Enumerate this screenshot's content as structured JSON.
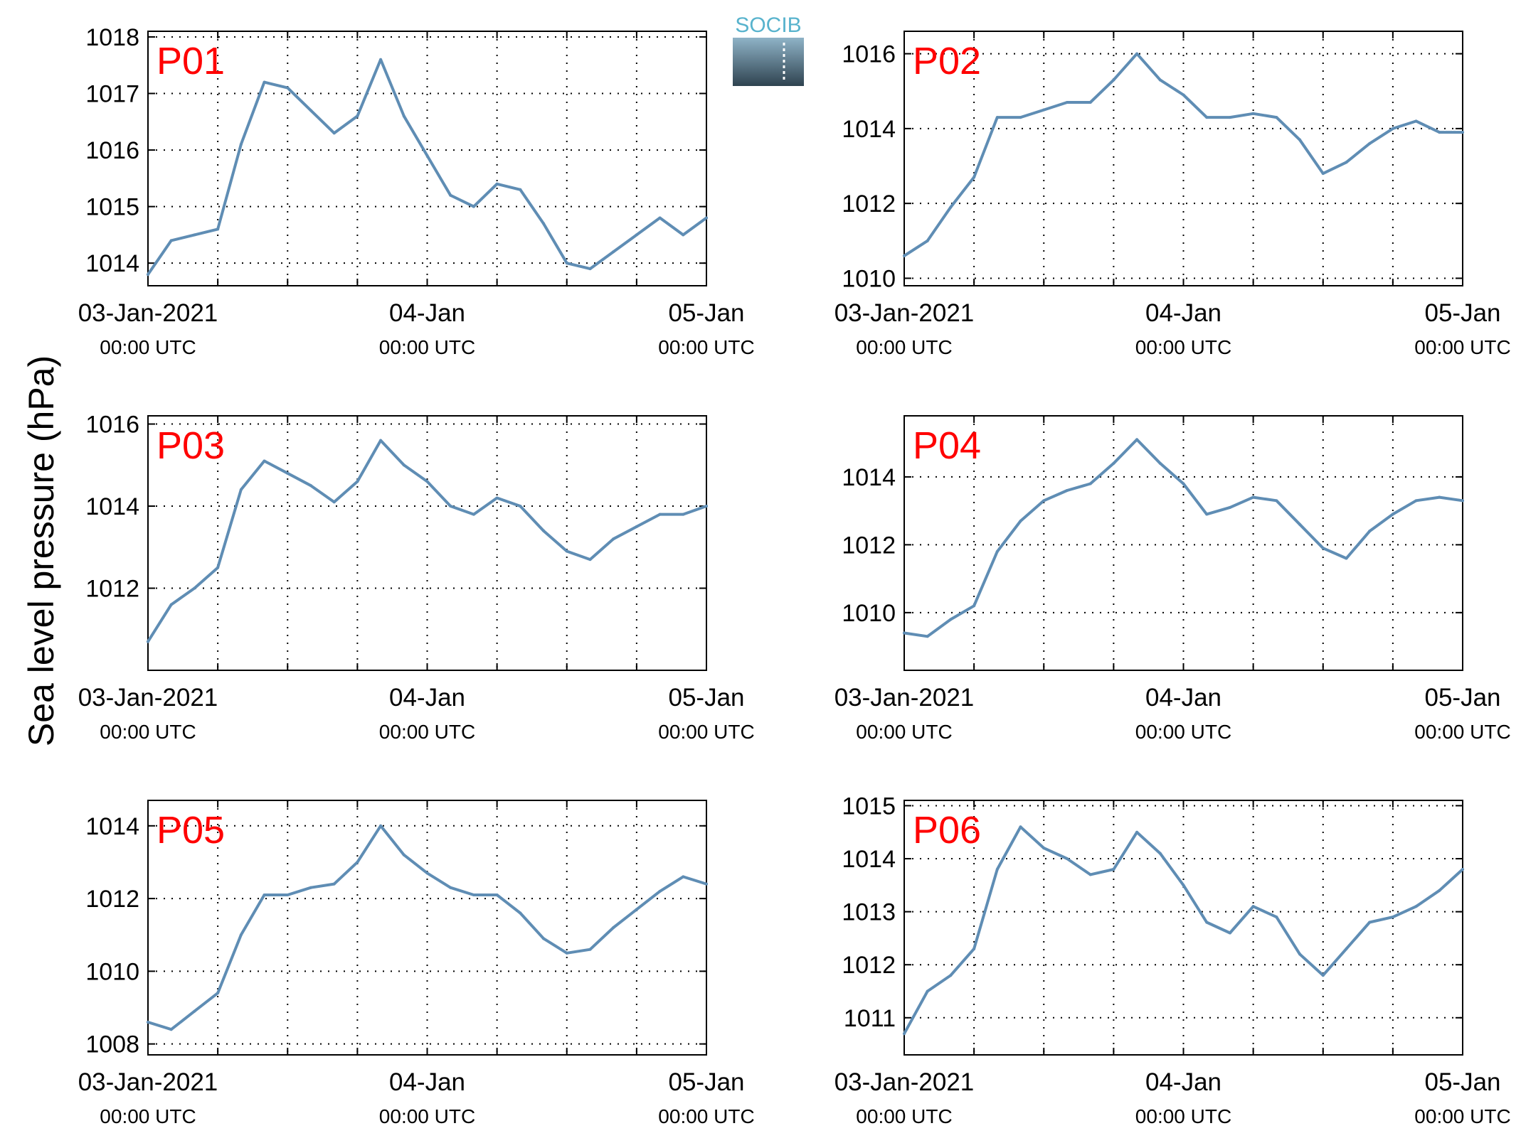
{
  "figure": {
    "ylabel": "Sea level pressure (hPa)",
    "logo_text": "SOCIB",
    "x_tick_labels": [
      {
        "date": "03-Jan-2021",
        "time": "00:00 UTC"
      },
      {
        "date": "04-Jan",
        "time": "00:00 UTC"
      },
      {
        "date": "05-Jan",
        "time": "00:00 UTC"
      }
    ]
  },
  "colors": {
    "line": "#5f8db4",
    "panel_label": "#ff0000",
    "axis": "#000000",
    "grid": "#000000"
  },
  "chart_data": [
    {
      "type": "line",
      "title": "P01",
      "xlim": [
        "2021-01-03 00:00",
        "2021-01-05 00:00"
      ],
      "ylim": [
        1013.6,
        1018.1
      ],
      "yticks": [
        1014,
        1015,
        1016,
        1017,
        1018
      ],
      "grid": true,
      "x_hours": [
        0,
        2,
        4,
        6,
        8,
        10,
        12,
        14,
        16,
        18,
        20,
        22,
        24,
        26,
        28,
        30,
        32,
        34,
        36,
        38,
        40,
        42,
        44,
        46,
        48
      ],
      "values": [
        1013.8,
        1014.4,
        1014.5,
        1014.6,
        1016.1,
        1017.2,
        1017.1,
        1016.7,
        1016.3,
        1016.6,
        1017.6,
        1016.6,
        1015.9,
        1015.2,
        1015.0,
        1015.4,
        1015.3,
        1014.7,
        1014.0,
        1013.9,
        1014.2,
        1014.5,
        1014.8,
        1014.5,
        1014.8
      ]
    },
    {
      "type": "line",
      "title": "P02",
      "xlim": [
        "2021-01-03 00:00",
        "2021-01-05 00:00"
      ],
      "ylim": [
        1009.8,
        1016.6
      ],
      "yticks": [
        1010,
        1012,
        1014,
        1016
      ],
      "grid": true,
      "x_hours": [
        0,
        2,
        4,
        6,
        8,
        10,
        12,
        14,
        16,
        18,
        20,
        22,
        24,
        26,
        28,
        30,
        32,
        34,
        36,
        38,
        40,
        42,
        44,
        46,
        48
      ],
      "values": [
        1010.6,
        1011.0,
        1011.9,
        1012.7,
        1014.3,
        1014.3,
        1014.5,
        1014.7,
        1014.7,
        1015.3,
        1016.0,
        1015.3,
        1014.9,
        1014.3,
        1014.3,
        1014.4,
        1014.3,
        1013.7,
        1012.8,
        1013.1,
        1013.6,
        1014.0,
        1014.2,
        1013.9,
        1013.9
      ]
    },
    {
      "type": "line",
      "title": "P03",
      "xlim": [
        "2021-01-03 00:00",
        "2021-01-05 00:00"
      ],
      "ylim": [
        1010.0,
        1016.2
      ],
      "yticks": [
        1012,
        1014,
        1016
      ],
      "grid": true,
      "x_hours": [
        0,
        2,
        4,
        6,
        8,
        10,
        12,
        14,
        16,
        18,
        20,
        22,
        24,
        26,
        28,
        30,
        32,
        34,
        36,
        38,
        40,
        42,
        44,
        46,
        48
      ],
      "values": [
        1010.7,
        1011.6,
        1012.0,
        1012.5,
        1014.4,
        1015.1,
        1014.8,
        1014.5,
        1014.1,
        1014.6,
        1015.6,
        1015.0,
        1014.6,
        1014.0,
        1013.8,
        1014.2,
        1014.0,
        1013.4,
        1012.9,
        1012.7,
        1013.2,
        1013.5,
        1013.8,
        1013.8,
        1014.0
      ]
    },
    {
      "type": "line",
      "title": "P04",
      "xlim": [
        "2021-01-03 00:00",
        "2021-01-05 00:00"
      ],
      "ylim": [
        1008.3,
        1015.8
      ],
      "yticks": [
        1010,
        1012,
        1014
      ],
      "grid": true,
      "x_hours": [
        0,
        2,
        4,
        6,
        8,
        10,
        12,
        14,
        16,
        18,
        20,
        22,
        24,
        26,
        28,
        30,
        32,
        34,
        36,
        38,
        40,
        42,
        44,
        46,
        48
      ],
      "values": [
        1009.4,
        1009.3,
        1009.8,
        1010.2,
        1011.8,
        1012.7,
        1013.3,
        1013.6,
        1013.8,
        1014.4,
        1015.1,
        1014.4,
        1013.8,
        1012.9,
        1013.1,
        1013.4,
        1013.3,
        1012.6,
        1011.9,
        1011.6,
        1012.4,
        1012.9,
        1013.3,
        1013.4,
        1013.3
      ]
    },
    {
      "type": "line",
      "title": "P05",
      "xlim": [
        "2021-01-03 00:00",
        "2021-01-05 00:00"
      ],
      "ylim": [
        1007.7,
        1014.7
      ],
      "yticks": [
        1008,
        1010,
        1012,
        1014
      ],
      "grid": true,
      "x_hours": [
        0,
        2,
        4,
        6,
        8,
        10,
        12,
        14,
        16,
        18,
        20,
        22,
        24,
        26,
        28,
        30,
        32,
        34,
        36,
        38,
        40,
        42,
        44,
        46,
        48
      ],
      "values": [
        1008.6,
        1008.4,
        1008.9,
        1009.4,
        1011.0,
        1012.1,
        1012.1,
        1012.3,
        1012.4,
        1013.0,
        1014.0,
        1013.2,
        1012.7,
        1012.3,
        1012.1,
        1012.1,
        1011.6,
        1010.9,
        1010.5,
        1010.6,
        1011.2,
        1011.7,
        1012.2,
        1012.6,
        1012.4
      ]
    },
    {
      "type": "line",
      "title": "P06",
      "xlim": [
        "2021-01-03 00:00",
        "2021-01-05 00:00"
      ],
      "ylim": [
        1010.3,
        1015.1
      ],
      "yticks": [
        1011,
        1012,
        1013,
        1014,
        1015
      ],
      "grid": true,
      "x_hours": [
        0,
        2,
        4,
        6,
        8,
        10,
        12,
        14,
        16,
        18,
        20,
        22,
        24,
        26,
        28,
        30,
        32,
        34,
        36,
        38,
        40,
        42,
        44,
        46,
        48
      ],
      "values": [
        1010.7,
        1011.5,
        1011.8,
        1012.3,
        1013.8,
        1014.6,
        1014.2,
        1014.0,
        1013.7,
        1013.8,
        1014.5,
        1014.1,
        1013.5,
        1012.8,
        1012.6,
        1013.1,
        1012.9,
        1012.2,
        1011.8,
        1012.3,
        1012.8,
        1012.9,
        1013.1,
        1013.4,
        1013.8
      ]
    }
  ]
}
